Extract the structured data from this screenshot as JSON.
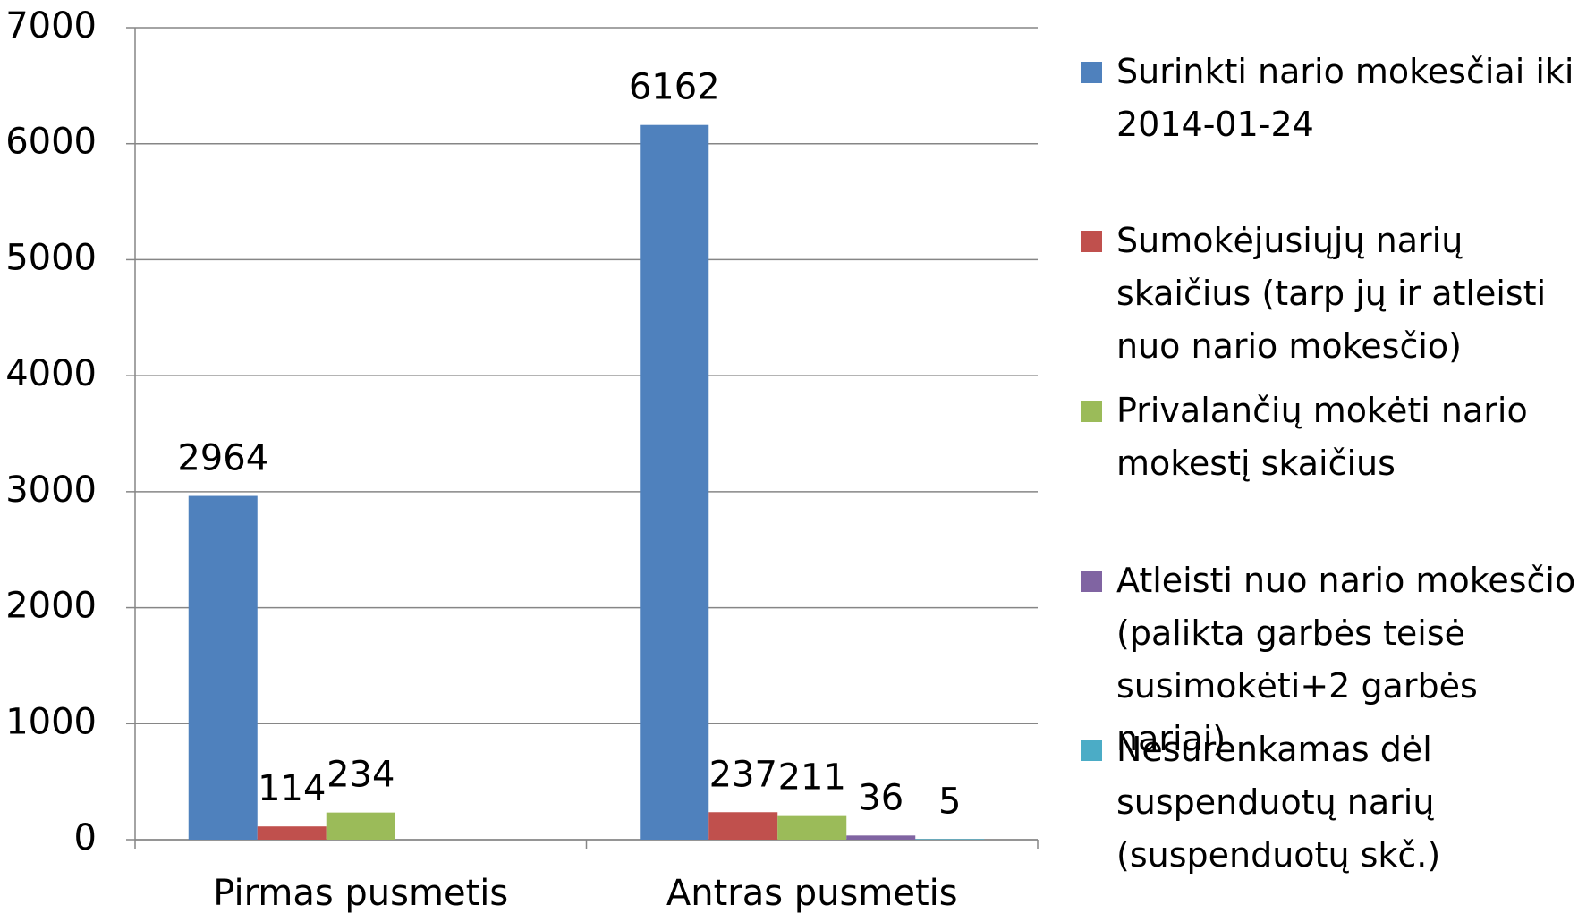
{
  "chart_data": {
    "type": "bar",
    "categories": [
      "Pirmas pusmetis",
      "Antras pusmetis"
    ],
    "series": [
      {
        "name": "Surinkti nario mokesčiai iki 2014-01-24",
        "color": "#4f81bd",
        "values": [
          2964,
          6162
        ]
      },
      {
        "name": "Sumokėjusiųjų narių skaičius (tarp jų ir atleisti nuo nario mokesčio)",
        "color": "#c0504d",
        "values": [
          114,
          237
        ]
      },
      {
        "name": "Privalančių mokėti nario mokestį skaičius",
        "color": "#9bbb59",
        "values": [
          234,
          211
        ]
      },
      {
        "name": "Atleisti nuo nario mokesčio (palikta garbės teisė susimokėti+2 garbės nariai)",
        "color": "#8064a2",
        "values": [
          null,
          36
        ]
      },
      {
        "name": "Nesurenkamas dėl suspenduotų narių (suspenduotų skč.)",
        "color": "#4bacc6",
        "values": [
          null,
          5
        ]
      }
    ],
    "ylim": [
      0,
      7000
    ],
    "yticks": [
      0,
      1000,
      2000,
      3000,
      4000,
      5000,
      6000,
      7000
    ],
    "grid": true,
    "legend": "right"
  }
}
